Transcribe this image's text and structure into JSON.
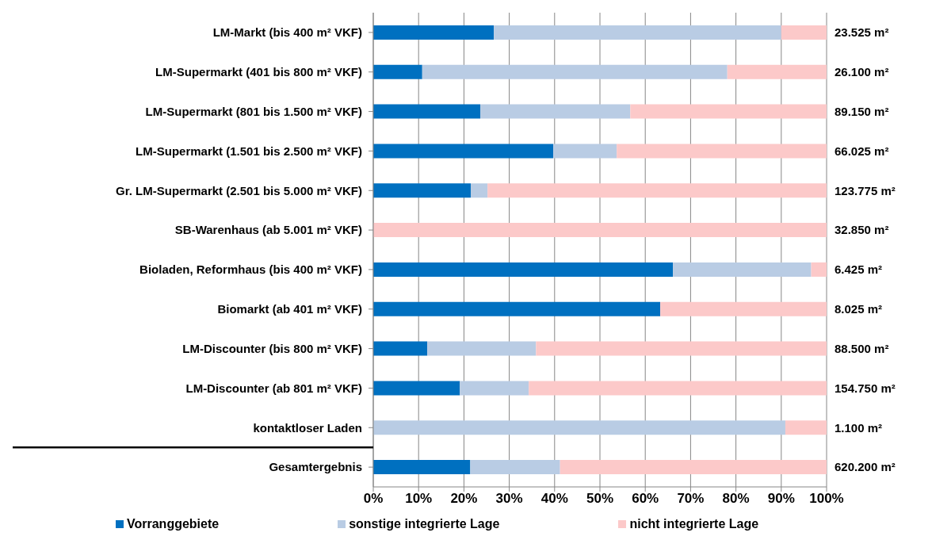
{
  "chart_data": {
    "type": "bar",
    "orientation": "horizontal",
    "stacked": true,
    "categories": [
      "LM-Markt (bis 400 m² VKF)",
      "LM-Supermarkt (401 bis 800 m² VKF)",
      "LM-Supermarkt (801 bis 1.500 m² VKF)",
      "LM-Supermarkt (1.501 bis 2.500 m² VKF)",
      "Gr. LM-Supermarkt (2.501 bis 5.000 m² VKF)",
      "SB-Warenhaus (ab 5.001 m² VKF)",
      "Bioladen, Reformhaus (bis 400 m² VKF)",
      "Biomarkt (ab 401 m² VKF)",
      "LM-Discounter (bis 800 m² VKF)",
      "LM-Discounter (ab 801 m² VKF)",
      "kontaktloser Laden",
      "Gesamtergebnis"
    ],
    "series": [
      {
        "name": "Vorranggebiete",
        "color": "#0070c0",
        "values": [
          26.6,
          10.8,
          23.6,
          39.7,
          21.5,
          0,
          66.1,
          63.3,
          11.9,
          19.1,
          0,
          21.4
        ]
      },
      {
        "name": "sonstige integrierte Lage",
        "color": "#b9cce4",
        "values": [
          63.4,
          67.3,
          33.1,
          14.0,
          3.7,
          0,
          30.5,
          0,
          24.0,
          15.2,
          90.9,
          19.8
        ]
      },
      {
        "name": "nicht integrierte Lage",
        "color": "#fcc9c9",
        "values": [
          10.0,
          21.9,
          43.3,
          46.3,
          74.8,
          100,
          3.4,
          36.7,
          64.1,
          65.7,
          9.1,
          58.8
        ]
      }
    ],
    "annotations": [
      "23.525 m²",
      "26.100 m²",
      "89.150 m²",
      "66.025 m²",
      "123.775 m²",
      "32.850 m²",
      "6.425 m²",
      "8.025 m²",
      "88.500 m²",
      "154.750 m²",
      "1.100 m²",
      "620.200 m²"
    ],
    "xlim": [
      0,
      100
    ],
    "xticks": [
      {
        "value": 0,
        "label": "0%"
      },
      {
        "value": 10,
        "label": "10%"
      },
      {
        "value": 20,
        "label": "20%"
      },
      {
        "value": 30,
        "label": "30%"
      },
      {
        "value": 40,
        "label": "40%"
      },
      {
        "value": 50,
        "label": "50%"
      },
      {
        "value": 60,
        "label": "60%"
      },
      {
        "value": 70,
        "label": "70%"
      },
      {
        "value": 80,
        "label": "80%"
      },
      {
        "value": 90,
        "label": "90%"
      },
      {
        "value": 100,
        "label": "100%"
      }
    ],
    "grid": "x",
    "legend": "bottom"
  }
}
